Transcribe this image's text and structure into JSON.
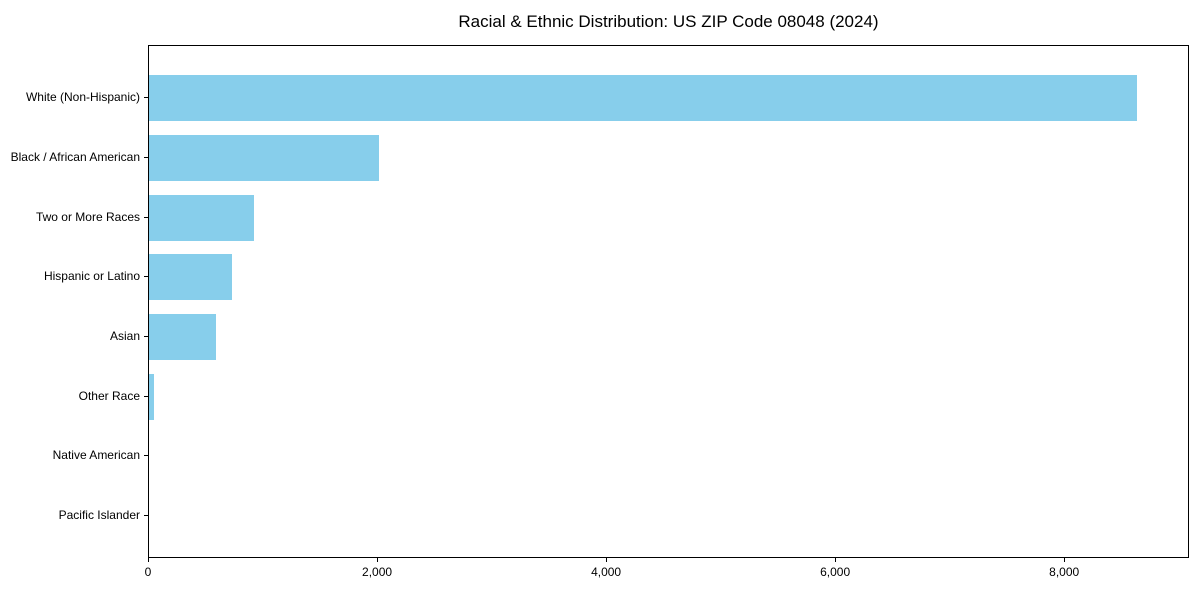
{
  "title": "Racial & Ethnic Distribution: US ZIP Code 08048 (2024)",
  "colors": {
    "bar": "#87CEEB",
    "axis": "#000000",
    "background": "#ffffff",
    "text": "#000000"
  },
  "chart_data": {
    "type": "bar",
    "orientation": "horizontal",
    "title": "Racial & Ethnic Distribution: US ZIP Code 08048 (2024)",
    "xlabel": "",
    "ylabel": "",
    "categories": [
      "White (Non-Hispanic)",
      "Black / African American",
      "Two or More Races",
      "Hispanic or Latino",
      "Asian",
      "Other Race",
      "Native American",
      "Pacific Islander"
    ],
    "values": [
      8640,
      2010,
      920,
      730,
      585,
      45,
      0,
      0
    ],
    "xlim": [
      0,
      9090
    ],
    "xticks": [
      0,
      2000,
      4000,
      6000,
      8000
    ],
    "xtick_labels": [
      "0",
      "2,000",
      "4,000",
      "6,000",
      "8,000"
    ],
    "grid": false,
    "legend": null,
    "bar_color": "#87CEEB"
  }
}
